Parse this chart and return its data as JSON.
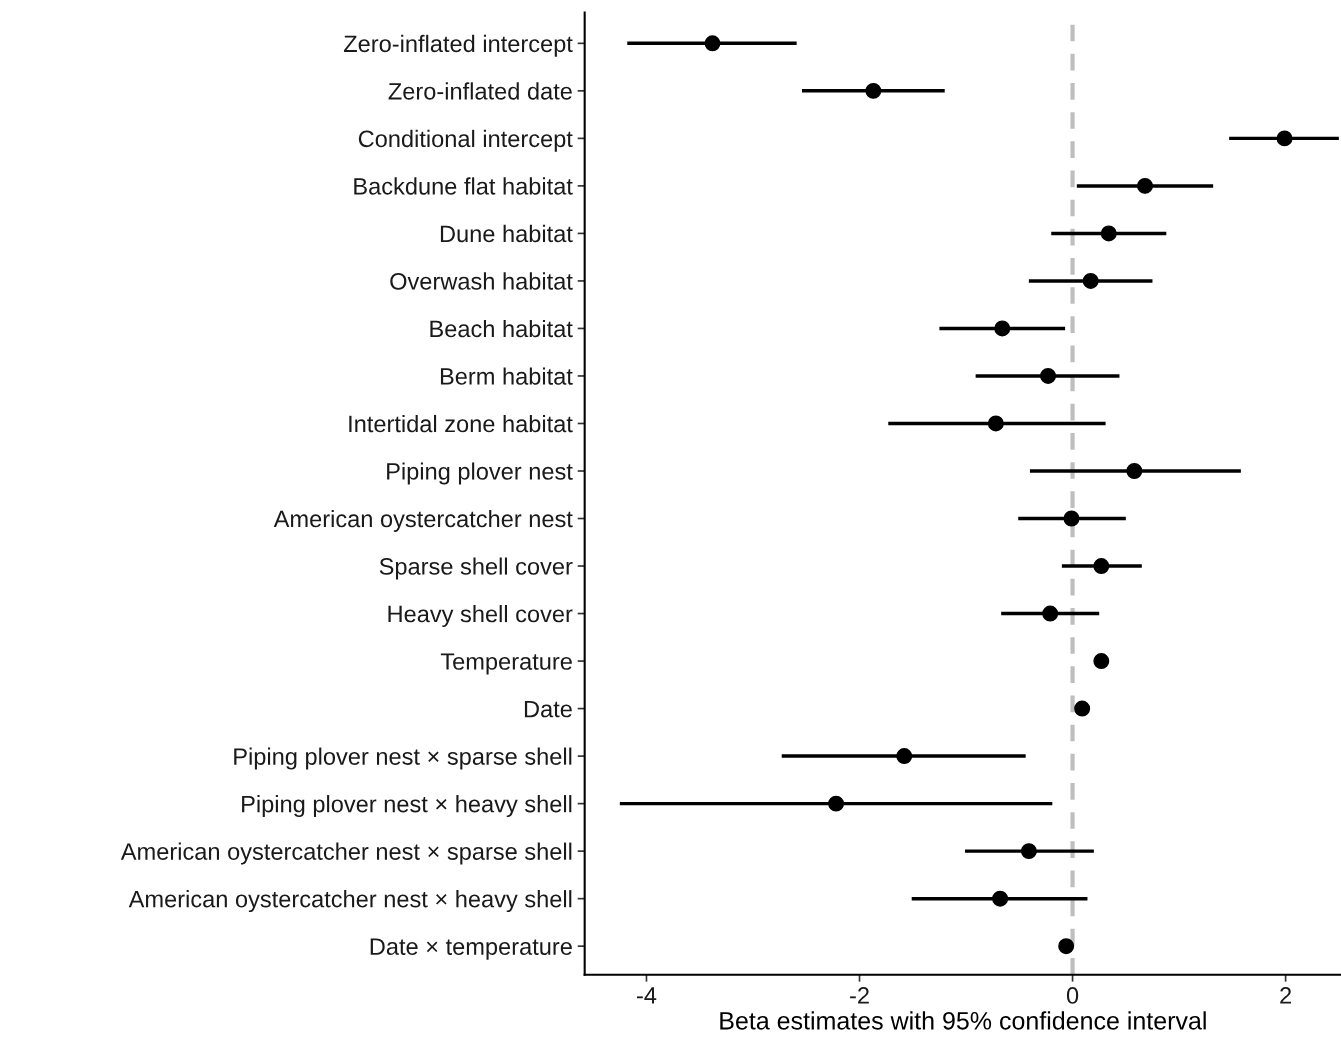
{
  "chart_data": {
    "type": "scatter",
    "orientation": "horizontal",
    "xlabel": "Beta estimates with 95% confidence interval",
    "categories": [
      "Zero-inflated intercept",
      "Zero-inflated date",
      "Conditional intercept",
      "Backdune flat habitat",
      "Dune habitat",
      "Overwash habitat",
      "Beach habitat",
      "Berm habitat",
      "Intertidal zone habitat",
      "Piping plover nest",
      "American oystercatcher nest",
      "Sparse shell cover",
      "Heavy shell cover",
      "Temperature",
      "Date",
      "Piping plover nest × sparse shell",
      "Piping plover nest × heavy shell",
      "American oystercatcher nest × sparse shell",
      "American oystercatcher nest × heavy shell",
      "Date × temperature"
    ],
    "values": [
      -3.38,
      -1.87,
      1.99,
      0.68,
      0.34,
      0.17,
      -0.66,
      -0.23,
      -0.72,
      0.58,
      -0.01,
      0.27,
      -0.21,
      0.27,
      0.09,
      -1.58,
      -2.22,
      -0.41,
      -0.68,
      -0.06
    ],
    "errors": [
      [
        -4.18,
        -2.59
      ],
      [
        -2.54,
        -1.2
      ],
      [
        1.47,
        2.5
      ],
      [
        0.04,
        1.32
      ],
      [
        -0.2,
        0.88
      ],
      [
        -0.41,
        0.75
      ],
      [
        -1.25,
        -0.07
      ],
      [
        -0.91,
        0.44
      ],
      [
        -1.73,
        0.31
      ],
      [
        -0.4,
        1.58
      ],
      [
        -0.51,
        0.5
      ],
      [
        -0.1,
        0.65
      ],
      [
        -0.67,
        0.25
      ],
      [
        0.22,
        0.34
      ],
      [
        0.04,
        0.16
      ],
      [
        -2.73,
        -0.44
      ],
      [
        -4.25,
        -0.19
      ],
      [
        -1.01,
        0.2
      ],
      [
        -1.51,
        0.14
      ],
      [
        -0.11,
        0.0
      ]
    ],
    "color": "#000000",
    "marker": "circle",
    "grid": false,
    "legend": false,
    "xlim": [
      -4.58,
      2.52
    ],
    "xticks": [
      {
        "value": -4,
        "label": "-4"
      },
      {
        "value": -2,
        "label": "-2"
      },
      0,
      2
    ],
    "ref_lines": [
      {
        "axis": "x",
        "value": 0,
        "color": "#bebebe",
        "line_style": "dashed"
      }
    ]
  }
}
